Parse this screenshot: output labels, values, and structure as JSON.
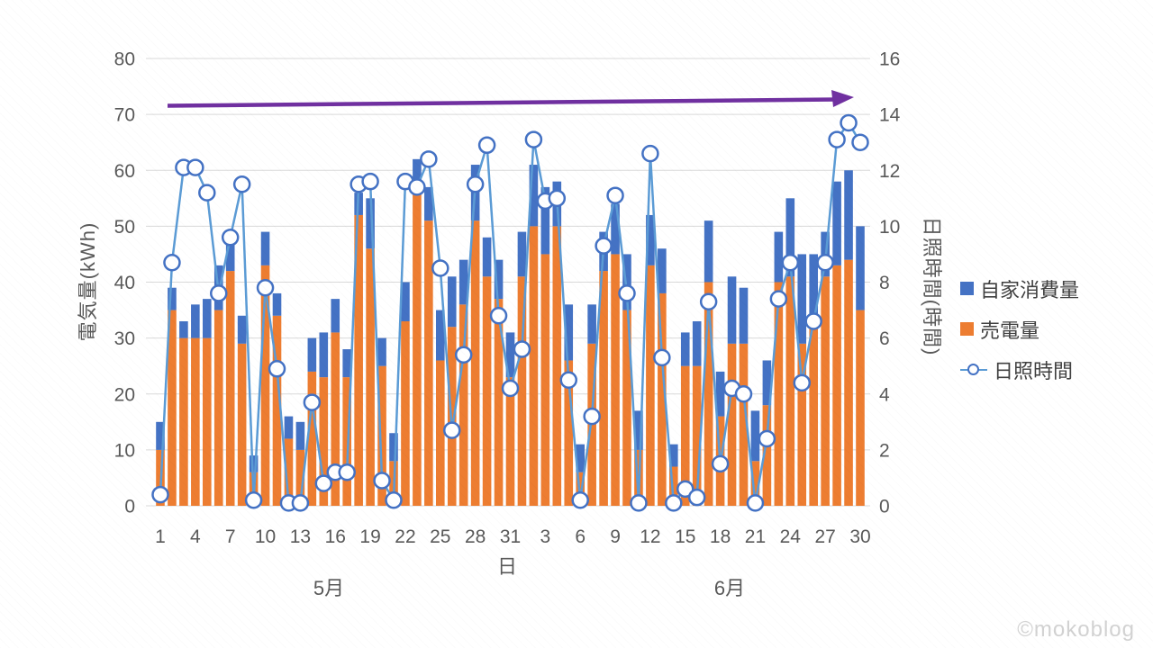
{
  "watermark": "©mokoblog",
  "legend": {
    "items": [
      {
        "label": "自家消費量",
        "swatch": "blue-square",
        "color": "#4472C4"
      },
      {
        "label": "売電量",
        "swatch": "orange-square",
        "color": "#ED7D31"
      },
      {
        "label": "日照時間",
        "swatch": "line-circle-marker",
        "color": "#5B9BD5"
      }
    ]
  },
  "left_axis": {
    "title": "電気量(kWh)",
    "min": 0,
    "max": 80,
    "step": 10,
    "ticks": [
      0,
      10,
      20,
      30,
      40,
      50,
      60,
      70,
      80
    ]
  },
  "right_axis": {
    "title": "日照時間(時間)",
    "min": 0,
    "max": 16,
    "step": 2,
    "ticks": [
      0,
      2,
      4,
      6,
      8,
      10,
      12,
      14,
      16
    ]
  },
  "x_axis": {
    "title": "日",
    "month_labels": [
      "5月",
      "6月"
    ],
    "tick_labels": [
      "1",
      "4",
      "7",
      "10",
      "13",
      "16",
      "19",
      "22",
      "25",
      "28",
      "31",
      "3",
      "6",
      "9",
      "12",
      "15",
      "18",
      "21",
      "24",
      "27",
      "30"
    ],
    "tick_interval": 3
  },
  "annotation_arrow": {
    "shape": "horizontal-arrow-right",
    "color": "#7030A0"
  },
  "chart_data": {
    "type": "combo: stacked bar (left axis kWh) + line with circle markers (right axis hours)",
    "grid": "horizontal gridlines every 10 kWh / 2 h",
    "legend_position": "right",
    "colors": {
      "self_consumption": "#4472C4",
      "sold": "#ED7D31",
      "line": "#5B9BD5",
      "marker_ring": "#4472C4",
      "gridline": "#D9D9D9"
    },
    "left_axis_range": [
      0,
      80
    ],
    "right_axis_range": [
      0,
      16
    ],
    "stack_order_bottom_to_top": [
      "売電量",
      "自家消費量"
    ],
    "months": [
      {
        "label": "5月",
        "days_in_month": 31,
        "self_consumption": [
          5,
          4,
          3,
          6,
          7,
          8,
          7,
          5,
          3,
          6,
          4,
          4,
          5,
          6,
          8,
          6,
          5,
          4,
          9,
          5,
          5,
          7,
          6,
          6,
          9,
          9,
          8,
          10,
          7,
          7,
          8
        ],
        "sold": [
          10,
          35,
          30,
          30,
          30,
          35,
          42,
          29,
          6,
          43,
          34,
          12,
          10,
          24,
          23,
          31,
          23,
          52,
          46,
          25,
          8,
          33,
          56,
          51,
          26,
          32,
          36,
          51,
          41,
          37,
          23
        ],
        "sunshine_hours": [
          0.4,
          8.7,
          12.1,
          12.1,
          11.2,
          7.6,
          9.6,
          11.5,
          0.2,
          7.8,
          4.9,
          0.1,
          0.1,
          3.7,
          0.8,
          1.2,
          1.2,
          11.5,
          11.6,
          0.9,
          0.2,
          11.6,
          11.4,
          12.4,
          8.5,
          2.7,
          5.4,
          11.5,
          12.9,
          6.8,
          4.2
        ]
      },
      {
        "label": "6月",
        "days_in_month": 30,
        "self_consumption": [
          8,
          11,
          12,
          8,
          10,
          5,
          7,
          7,
          9,
          10,
          7,
          9,
          8,
          4,
          6,
          8,
          11,
          8,
          12,
          10,
          9,
          8,
          9,
          14,
          16,
          11,
          8,
          15,
          16,
          15
        ],
        "sold": [
          41,
          50,
          45,
          50,
          26,
          6,
          29,
          42,
          45,
          35,
          10,
          43,
          38,
          7,
          25,
          25,
          40,
          16,
          29,
          29,
          8,
          18,
          40,
          41,
          29,
          34,
          41,
          43,
          44,
          35
        ],
        "sunshine_hours": [
          5.6,
          13.1,
          10.9,
          11.0,
          4.5,
          0.2,
          3.2,
          9.3,
          11.1,
          7.6,
          0.1,
          12.6,
          5.3,
          0.1,
          0.6,
          0.3,
          7.3,
          1.5,
          4.2,
          4.0,
          0.1,
          2.4,
          7.4,
          8.7,
          4.4,
          6.6,
          8.7,
          13.1,
          13.7,
          13.0
        ]
      }
    ]
  }
}
